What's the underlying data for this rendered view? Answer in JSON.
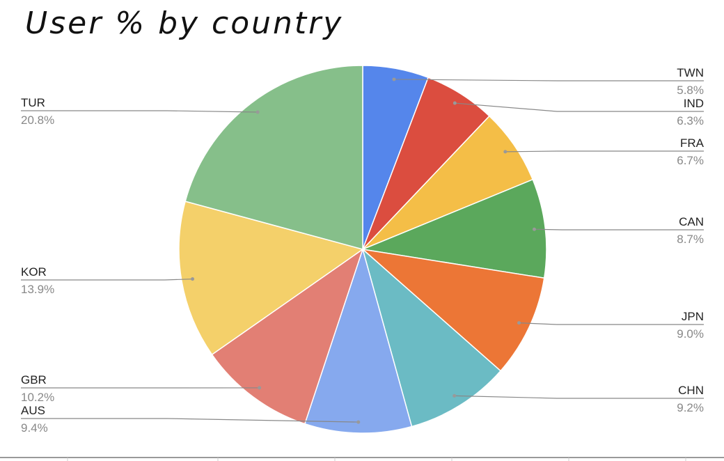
{
  "chart_data": {
    "type": "pie",
    "title": "User % by country",
    "categories": [
      "TWN",
      "IND",
      "FRA",
      "CAN",
      "JPN",
      "CHN",
      "AUS",
      "GBR",
      "KOR",
      "TUR"
    ],
    "values": [
      5.8,
      6.3,
      6.7,
      8.7,
      9.0,
      9.2,
      9.4,
      10.2,
      13.9,
      20.8
    ],
    "labels": [
      "5.8%",
      "6.3%",
      "6.7%",
      "8.7%",
      "9.0%",
      "9.2%",
      "9.4%",
      "10.2%",
      "13.9%",
      "20.8%"
    ],
    "colors": [
      "#5586EB",
      "#DB4D3F",
      "#F4BE47",
      "#5BA85C",
      "#EC7636",
      "#6BBBC4",
      "#86A9EE",
      "#E27F74",
      "#F4D06A",
      "#86BF8A"
    ],
    "start": "top",
    "direction": "clockwise",
    "legend": "none"
  }
}
